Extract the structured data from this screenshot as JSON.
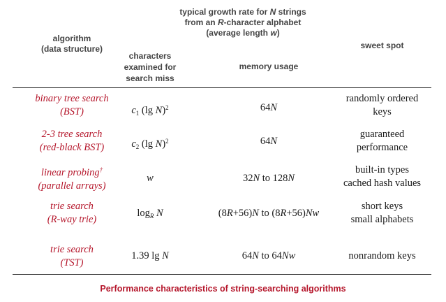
{
  "header": {
    "algorithm": "algorithm",
    "data_structure": "(data structure)",
    "growth_line1_pre": "typical growth rate for ",
    "growth_line1_var": "N",
    "growth_line1_post": " strings",
    "growth_line2_pre": "from an ",
    "growth_line2_var": "R",
    "growth_line2_post": "-character alphabet",
    "growth_line3_pre": "(average length ",
    "growth_line3_var": "w",
    "growth_line3_post": ")",
    "chars_line1": "characters",
    "chars_line2": "examined for",
    "chars_line3": "search miss",
    "memory": "memory usage",
    "sweet_spot": "sweet spot"
  },
  "rows": [
    {
      "algo": "binary tree search",
      "ds": "(BST)",
      "chars": {
        "c": "c",
        "sub": "1",
        "lg": " (lg ",
        "N": "N",
        "close": ")",
        "sup": "2"
      },
      "mem": {
        "num": "64",
        "var": "N"
      },
      "sweet": [
        "randomly ordered",
        "keys"
      ]
    },
    {
      "algo": "2-3 tree search",
      "ds": "(red-black BST)",
      "chars": {
        "c": "c",
        "sub": "2",
        "lg": " (lg ",
        "N": "N",
        "close": ")",
        "sup": "2"
      },
      "mem": {
        "num": "64",
        "var": "N"
      },
      "sweet": [
        "guaranteed",
        "performance"
      ]
    },
    {
      "algo": "linear probing",
      "algo_mark": "†",
      "ds": "(parallel arrays)",
      "chars": {
        "w": "w"
      },
      "mem": {
        "a": "32",
        "av": "N",
        "to": " to ",
        "b": "128",
        "bv": "N"
      },
      "sweet": [
        "built-in types",
        "cached hash values"
      ]
    },
    {
      "algo": "trie search",
      "ds": "(R-way trie)",
      "chars": {
        "log": "log",
        "sub": "R",
        "N": " N"
      },
      "mem": {
        "p1": "(8",
        "r1": "R",
        "p2": "+56)",
        "n1": "N",
        "to": " to ",
        "p3": "(8",
        "r2": "R",
        "p4": "+56)",
        "nw": "Nw"
      },
      "sweet": [
        "short keys",
        "small alphabets"
      ]
    },
    {
      "algo": "trie search",
      "ds": "(TST)",
      "chars": {
        "pre": "1.39 lg ",
        "N": "N"
      },
      "mem": {
        "a": "64",
        "av": "N",
        "to": " to ",
        "b": "64",
        "bv": "Nw"
      },
      "sweet": [
        "nonrandom keys"
      ]
    }
  ],
  "caption": "Performance characteristics of string-searching algorithms"
}
